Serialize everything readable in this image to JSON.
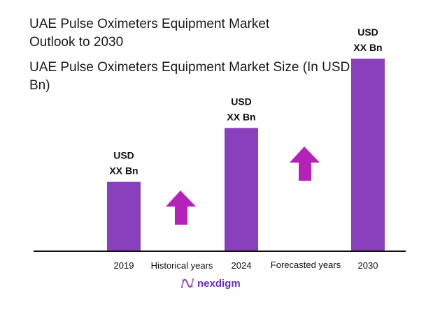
{
  "chart_data": {
    "type": "bar",
    "title": "UAE Pulse Oximeters Equipment Market Outlook to 2030",
    "subtitle": "UAE Pulse Oximeters Equipment Market Size (In USD Bn)",
    "categories": [
      "2019",
      "2024",
      "2030"
    ],
    "relative_values": [
      0.36,
      0.64,
      1.0
    ],
    "data_labels": [
      [
        "USD",
        "XX Bn"
      ],
      [
        "USD",
        "XX Bn"
      ],
      [
        "USD",
        "XX Bn"
      ]
    ],
    "period_labels": [
      "Historical years",
      "Forecasted years"
    ],
    "grid": false,
    "y_axis_shown": false,
    "bar_color": "#8a40bd",
    "arrow_color": "#b522b8",
    "axis_color": "#111111"
  },
  "brand": {
    "name": "nexdigm",
    "color": "#6a2fc0"
  }
}
